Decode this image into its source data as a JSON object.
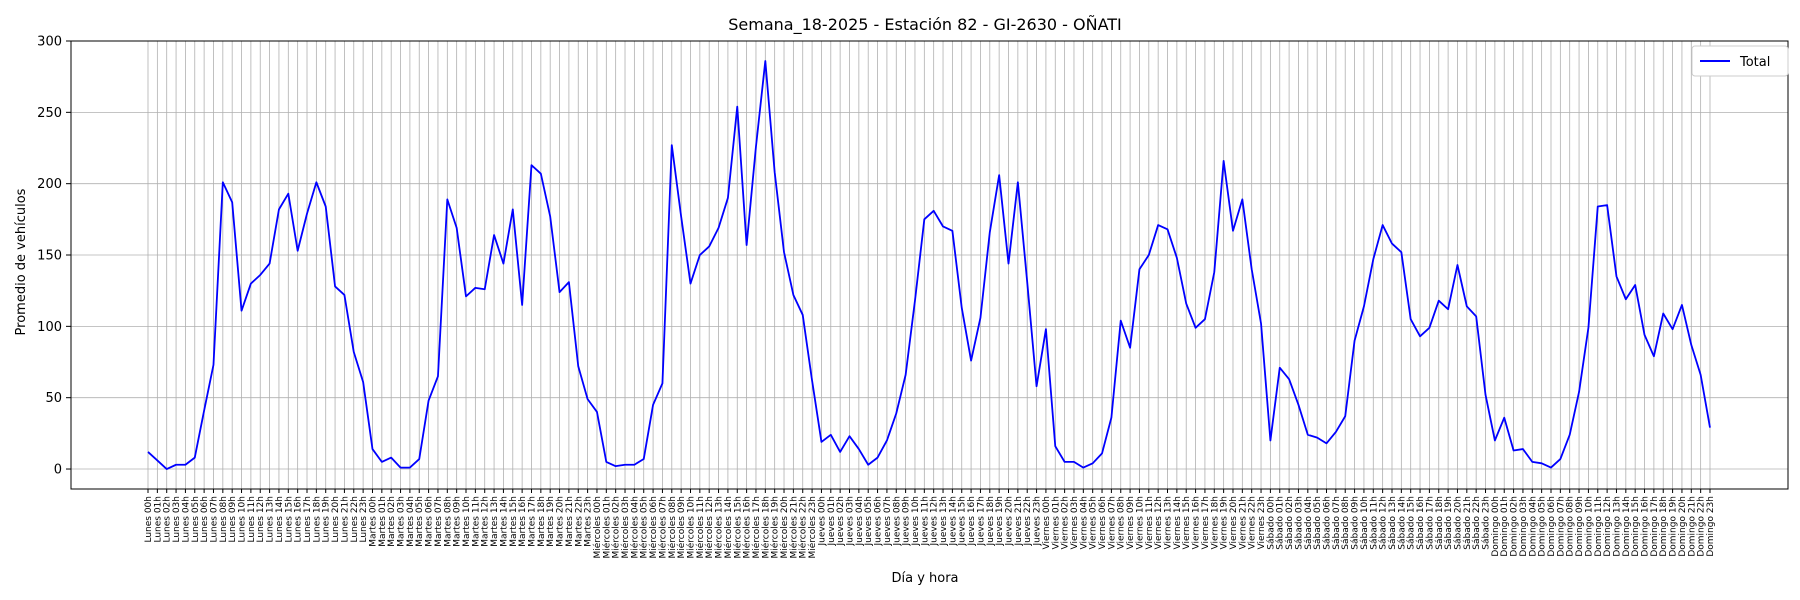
{
  "chart_data": {
    "type": "line",
    "title": "Semana_18-2025 - Estación 82 - GI-2630  - OÑATI",
    "xlabel": "Día y hora",
    "ylabel": "Promedio de vehículos",
    "ylim": [
      -14,
      300
    ],
    "yticks": [
      0,
      50,
      100,
      150,
      200,
      250,
      300
    ],
    "grid": true,
    "legend_position": "top-right",
    "days": [
      "Lunes",
      "Martes",
      "Miércoles",
      "Jueves",
      "Viernes",
      "Sábado",
      "Domingo"
    ],
    "series": [
      {
        "name": "Total",
        "color": "#0000ff",
        "values": [
          12,
          6,
          0,
          3,
          3,
          8,
          41,
          73,
          201,
          187,
          111,
          130,
          136,
          144,
          182,
          193,
          153,
          179,
          201,
          184,
          128,
          122,
          82,
          61,
          14,
          5,
          8,
          1,
          1,
          7,
          48,
          65,
          189,
          169,
          121,
          127,
          126,
          164,
          144,
          182,
          115,
          213,
          207,
          177,
          124,
          131,
          72,
          49,
          40,
          5,
          2,
          3,
          3,
          7,
          45,
          60,
          227,
          177,
          130,
          150,
          156,
          169,
          190,
          254,
          157,
          226,
          286,
          208,
          152,
          122,
          108,
          62,
          19,
          24,
          12,
          23,
          14,
          3,
          8,
          20,
          39,
          66,
          118,
          175,
          181,
          170,
          167,
          113,
          76,
          106,
          166,
          206,
          144,
          201,
          131,
          58,
          98,
          16,
          5,
          5,
          1,
          4,
          11,
          36,
          104,
          85,
          140,
          150,
          171,
          168,
          148,
          116,
          99,
          105,
          138,
          216,
          167,
          189,
          140,
          102,
          20,
          71,
          63,
          45,
          24,
          22,
          18,
          26,
          37,
          90,
          114,
          147,
          171,
          158,
          152,
          105,
          93,
          99,
          118,
          112,
          143,
          114,
          107,
          52,
          20,
          36,
          13,
          14,
          5,
          4,
          1,
          7,
          24,
          54,
          99,
          184,
          185,
          135,
          119,
          129,
          94,
          79,
          109,
          98,
          115,
          87,
          66,
          29
        ]
      }
    ]
  }
}
